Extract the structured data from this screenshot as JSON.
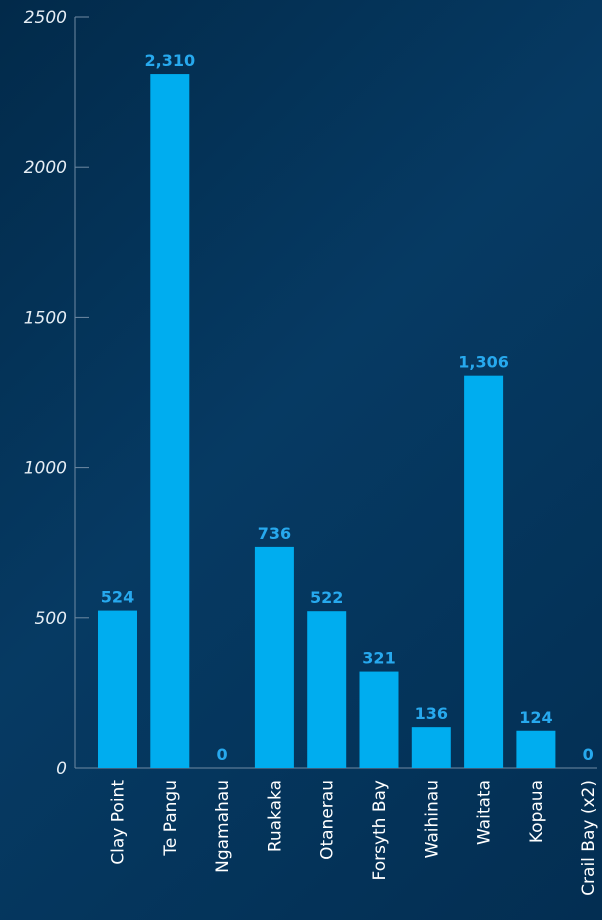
{
  "chart_data": {
    "type": "bar",
    "categories": [
      "Clay Point",
      "Te Pangu",
      "Ngamahau",
      "Ruakaka",
      "Otanerau",
      "Forsyth Bay",
      "Waihinau",
      "Waitata",
      "Kopaua",
      "Crail Bay (x2)"
    ],
    "values": [
      524,
      2310,
      0,
      736,
      522,
      321,
      136,
      1306,
      124,
      0
    ],
    "data_labels": [
      "524",
      "2,310",
      "0",
      "736",
      "522",
      "321",
      "136",
      "1,306",
      "124",
      "0"
    ],
    "yticks": [
      "0",
      "500",
      "1000",
      "1500",
      "2000",
      "2500"
    ],
    "ylim": [
      0,
      2500
    ],
    "grid": false,
    "bar_color": "#00adef",
    "label_color": "#27a9ee",
    "axis_color": "#6f8aa3"
  }
}
